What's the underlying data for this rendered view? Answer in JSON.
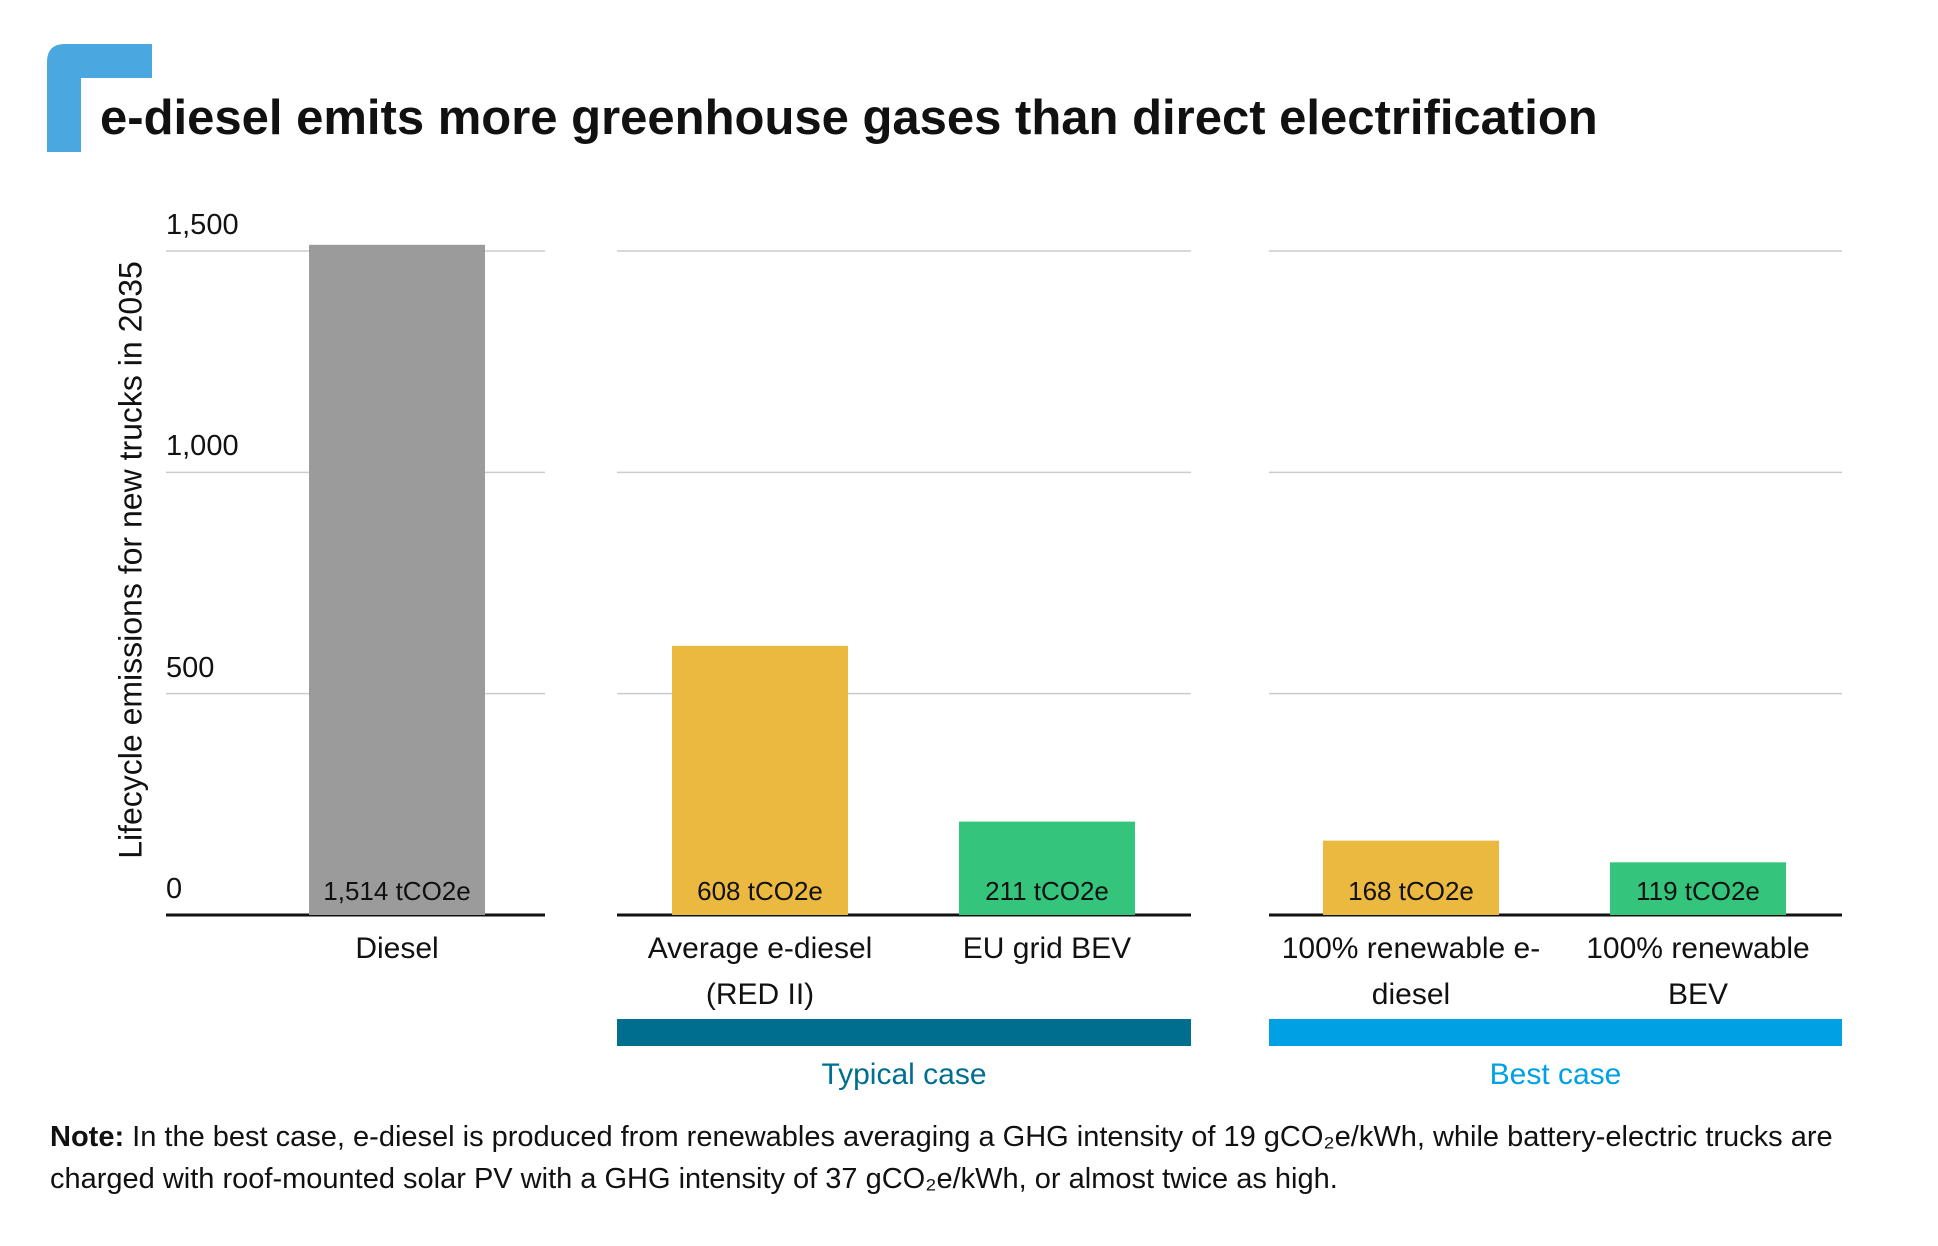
{
  "chart_data": {
    "type": "bar",
    "title": "e-diesel emits more greenhouse gases than direct electrification",
    "y_label": "Lifecycle emissions for new trucks in 2035",
    "categories": [
      "Diesel",
      "Average e-diesel (RED II)",
      "EU grid BEV",
      "100% renewable e-diesel",
      "100% renewable BEV"
    ],
    "values": [
      1514,
      608,
      211,
      168,
      119
    ],
    "value_labels": [
      "1,514 tCO2e",
      "608 tCO2e",
      "211 tCO2e",
      "168 tCO2e",
      "119 tCO2e"
    ],
    "colors": [
      "#9b9b9b",
      "#ebb93f",
      "#34c47c",
      "#ebb93f",
      "#34c47c"
    ],
    "groups": [
      {
        "label": "Typical case",
        "color": "#006e8f"
      },
      {
        "label": "Best case",
        "color": "#00a1e4"
      }
    ],
    "ylim": [
      0,
      1500
    ],
    "yticks": [
      0,
      500,
      {
        "value": 1000,
        "label": "1,000"
      },
      {
        "value": 1500,
        "label": "1,500"
      }
    ],
    "grid": true
  },
  "note": {
    "label": "Note:",
    "text": "In the best case, e-diesel is produced from renewables averaging a GHG intensity of 19 gCO₂e/kWh, while battery-electric trucks are charged with roof-mounted solar PV with a GHG intensity of 37 gCO₂e/kWh, or almost twice as high."
  }
}
